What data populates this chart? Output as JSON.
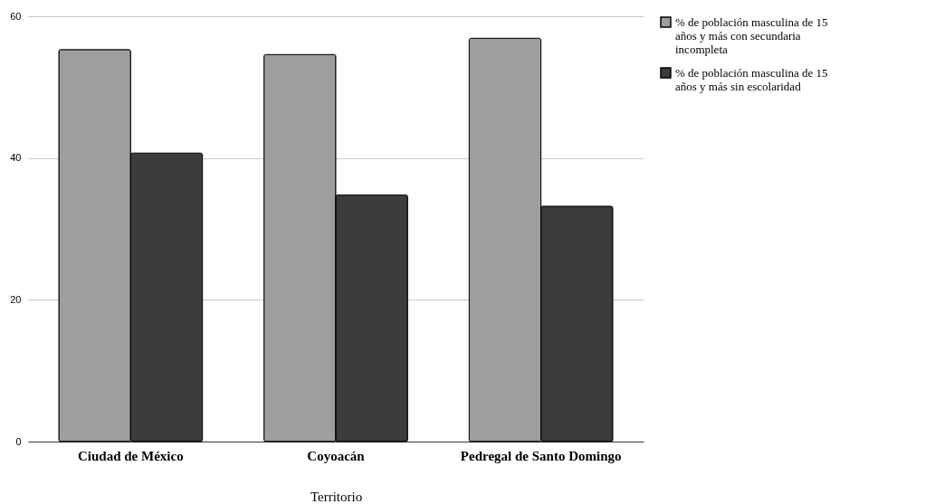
{
  "chart_data": {
    "type": "bar",
    "xlabel": "Territorio",
    "categories": [
      "Ciudad de México",
      "Coyoacán",
      "Pedregal de Santo Domingo"
    ],
    "series": [
      {
        "name": "% de población masculina de 15 años y más con secundaria incompleta",
        "color": "#9e9e9e",
        "values": [
          55.3,
          54.6,
          56.9
        ]
      },
      {
        "name": "% de población masculina de 15 años y más sin escolaridad",
        "color": "#3c3c3c",
        "values": [
          40.7,
          34.8,
          33.2
        ]
      }
    ],
    "ylim": [
      0,
      60
    ],
    "yticks": [
      0,
      20,
      40,
      60
    ],
    "grid": "y",
    "legend": "right"
  }
}
